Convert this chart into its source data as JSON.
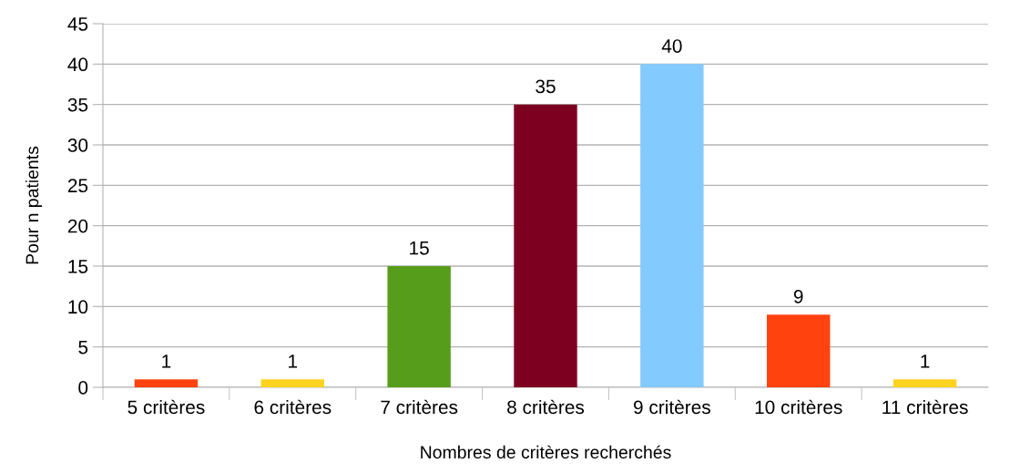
{
  "chart_data": {
    "type": "bar",
    "xlabel": "Nombres de critères recherchés",
    "ylabel": "Pour n patients",
    "categories": [
      "5 critères",
      "6 critères",
      "7 critères",
      "8 critères",
      "9 critères",
      "10 critères",
      "11 critères"
    ],
    "values": [
      1,
      1,
      15,
      35,
      40,
      9,
      1
    ],
    "colors": [
      "#ff420e",
      "#ffd320",
      "#579d1c",
      "#7e0021",
      "#83caff",
      "#ff420e",
      "#ffd320"
    ],
    "ylim": [
      0,
      45
    ],
    "yticks": [
      0,
      5,
      10,
      15,
      20,
      25,
      30,
      35,
      40,
      45
    ],
    "grid": "y",
    "data_labels": true,
    "legend": false
  }
}
